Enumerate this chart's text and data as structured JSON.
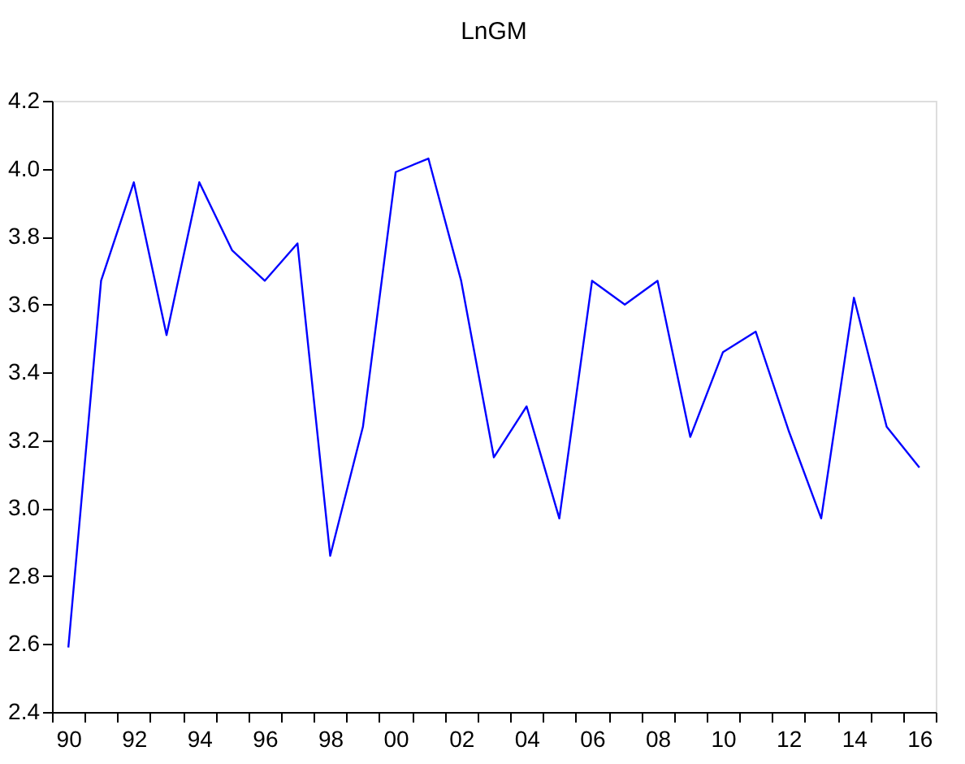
{
  "chart_data": {
    "type": "line",
    "title": "LnGM",
    "x": [
      1990,
      1991,
      1992,
      1993,
      1994,
      1995,
      1996,
      1997,
      1998,
      1999,
      2000,
      2001,
      2002,
      2003,
      2004,
      2005,
      2006,
      2007,
      2008,
      2009,
      2010,
      2011,
      2012,
      2013,
      2014,
      2015,
      2016
    ],
    "series": [
      {
        "color": "#0000ff",
        "values": [
          2.59,
          3.67,
          3.96,
          3.51,
          3.96,
          3.76,
          3.67,
          3.78,
          2.86,
          3.24,
          3.99,
          4.03,
          3.67,
          3.15,
          3.3,
          2.97,
          3.67,
          3.6,
          3.67,
          3.21,
          3.46,
          3.52,
          3.23,
          2.97,
          3.62,
          3.24,
          3.12
        ]
      }
    ],
    "xlim": [
      1989.5,
      2016.5
    ],
    "xticks": [
      {
        "value": 1990,
        "label": "90"
      },
      {
        "value": 1992,
        "label": "92"
      },
      {
        "value": 1994,
        "label": "94"
      },
      {
        "value": 1996,
        "label": "96"
      },
      {
        "value": 1998,
        "label": "98"
      },
      {
        "value": 2000,
        "label": "00"
      },
      {
        "value": 2002,
        "label": "02"
      },
      {
        "value": 2004,
        "label": "04"
      },
      {
        "value": 2006,
        "label": "06"
      },
      {
        "value": 2008,
        "label": "08"
      },
      {
        "value": 2010,
        "label": "10"
      },
      {
        "value": 2012,
        "label": "12"
      },
      {
        "value": 2014,
        "label": "14"
      },
      {
        "value": 2016,
        "label": "16"
      },
      {
        "value": 1989.5,
        "label": null
      },
      {
        "value": 1990.5,
        "label": null
      },
      {
        "value": 1991.5,
        "label": null
      },
      {
        "value": 1992.5,
        "label": null
      },
      {
        "value": 1993.5,
        "label": null
      },
      {
        "value": 1994.5,
        "label": null
      },
      {
        "value": 1995.5,
        "label": null
      },
      {
        "value": 1996.5,
        "label": null
      },
      {
        "value": 1997.5,
        "label": null
      },
      {
        "value": 1998.5,
        "label": null
      },
      {
        "value": 1999.5,
        "label": null
      },
      {
        "value": 2000.5,
        "label": null
      },
      {
        "value": 2001.5,
        "label": null
      },
      {
        "value": 2002.5,
        "label": null
      },
      {
        "value": 2003.5,
        "label": null
      },
      {
        "value": 2004.5,
        "label": null
      },
      {
        "value": 2005.5,
        "label": null
      },
      {
        "value": 2006.5,
        "label": null
      },
      {
        "value": 2007.5,
        "label": null
      },
      {
        "value": 2008.5,
        "label": null
      },
      {
        "value": 2009.5,
        "label": null
      },
      {
        "value": 2010.5,
        "label": null
      },
      {
        "value": 2011.5,
        "label": null
      },
      {
        "value": 2012.5,
        "label": null
      },
      {
        "value": 2013.5,
        "label": null
      },
      {
        "value": 2014.5,
        "label": null
      },
      {
        "value": 2015.5,
        "label": null
      },
      {
        "value": 2016.5,
        "label": null
      }
    ],
    "ylim": [
      2.4,
      4.2
    ],
    "yticks": [
      2.4,
      2.6,
      2.8,
      {
        "value": 3,
        "label": "3.0"
      },
      3.2,
      3.4,
      3.6,
      3.8,
      {
        "value": 4,
        "label": "4.0"
      },
      4.2
    ],
    "grid": false,
    "line_style": "solid"
  }
}
